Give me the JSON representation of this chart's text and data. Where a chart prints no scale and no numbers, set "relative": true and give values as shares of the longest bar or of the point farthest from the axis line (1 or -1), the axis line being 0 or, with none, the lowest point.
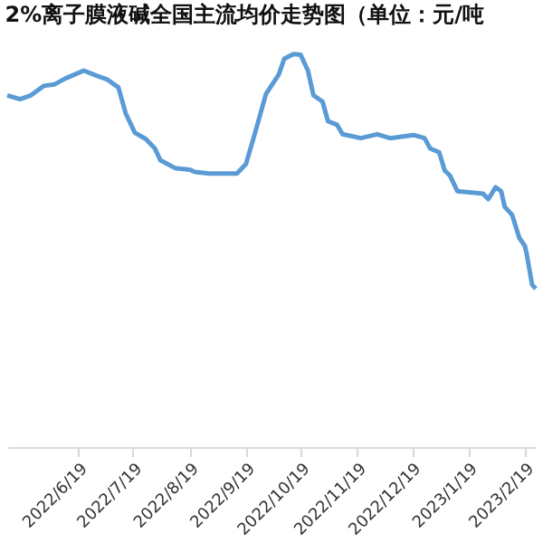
{
  "chart_data": {
    "type": "line",
    "title": "2%离子膜液碱全国主流均价走势图（单位：元/吨",
    "relative": true,
    "x": [
      "2022-05-11",
      "2022-05-18",
      "2022-05-24",
      "2022-05-31",
      "2022-06-06",
      "2022-06-12",
      "2022-06-22",
      "2022-06-29",
      "2022-07-05",
      "2022-07-11",
      "2022-07-15",
      "2022-07-20",
      "2022-07-26",
      "2022-07-31",
      "2022-08-03",
      "2022-08-11",
      "2022-08-19",
      "2022-08-22",
      "2022-08-30",
      "2022-09-14",
      "2022-09-19",
      "2022-09-24",
      "2022-09-30",
      "2022-10-07",
      "2022-10-10",
      "2022-10-15",
      "2022-10-19",
      "2022-10-23",
      "2022-10-26",
      "2022-10-31",
      "2022-11-03",
      "2022-11-08",
      "2022-11-11",
      "2022-11-21",
      "2022-11-30",
      "2022-12-07",
      "2022-12-20",
      "2022-12-26",
      "2022-12-29",
      "2023-01-03",
      "2023-01-06",
      "2023-01-09",
      "2023-01-13",
      "2023-01-27",
      "2023-01-30",
      "2023-02-03",
      "2023-02-06",
      "2023-02-08",
      "2023-02-12",
      "2023-02-16",
      "2023-02-19",
      "2023-02-20",
      "2023-02-23",
      "2023-02-25"
    ],
    "series": [
      {
        "color": "#5b9bd5",
        "values": [
          0.895,
          0.885,
          0.895,
          0.919,
          0.923,
          0.938,
          0.958,
          0.945,
          0.935,
          0.915,
          0.849,
          0.8,
          0.784,
          0.76,
          0.73,
          0.71,
          0.706,
          0.7,
          0.696,
          0.696,
          0.72,
          0.8,
          0.899,
          0.948,
          0.988,
          1.0,
          0.998,
          0.958,
          0.895,
          0.879,
          0.829,
          0.82,
          0.796,
          0.786,
          0.796,
          0.786,
          0.794,
          0.786,
          0.76,
          0.75,
          0.704,
          0.69,
          0.651,
          0.645,
          0.631,
          0.661,
          0.651,
          0.611,
          0.591,
          0.532,
          0.512,
          0.492,
          0.413,
          0.403
        ]
      }
    ],
    "xlim": [
      "2022-05-11",
      "2023-02-25"
    ],
    "xticks": [
      {
        "value": "2022-06-19",
        "label": "2022/6/19"
      },
      {
        "value": "2022-07-19",
        "label": "2022/7/19"
      },
      {
        "value": "2022-08-19",
        "label": "2022/8/19"
      },
      {
        "value": "2022-09-19",
        "label": "2022/9/19"
      },
      {
        "value": "2022-10-19",
        "label": "2022/10/19"
      },
      {
        "value": "2022-11-19",
        "label": "2022/11/19"
      },
      {
        "value": "2022-12-19",
        "label": "2022/12/19"
      },
      {
        "value": "2023-01-19",
        "label": "2023/1/19"
      },
      {
        "value": "2023-02-19",
        "label": "2023/2/19"
      }
    ],
    "grid": false,
    "legend": false,
    "marker": "none",
    "line_style": "solid"
  }
}
